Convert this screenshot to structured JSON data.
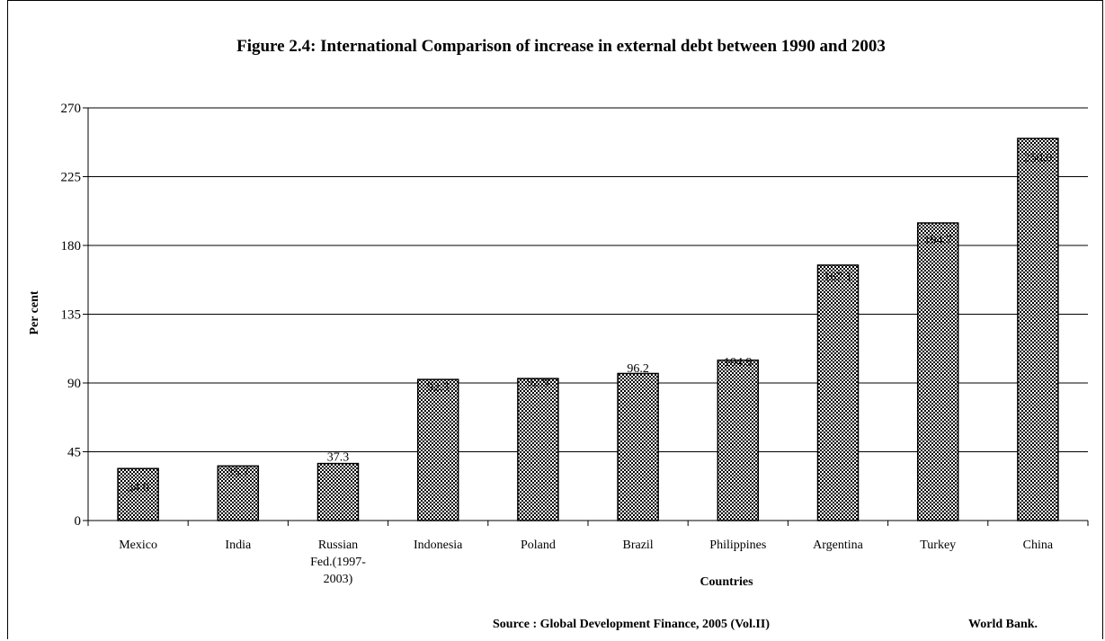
{
  "chart_data": {
    "type": "bar",
    "title": "Figure 2.4: International Comparison of increase in external debt between 1990 and 2003",
    "xlabel": "Countries",
    "ylabel": "Per cent",
    "categories": [
      [
        "Mexico"
      ],
      [
        "India"
      ],
      [
        "Russian",
        "Fed.(1997-",
        "2003)"
      ],
      [
        "Indonesia"
      ],
      [
        "Poland"
      ],
      [
        "Brazil"
      ],
      [
        "Philippines"
      ],
      [
        "Argentina"
      ],
      [
        "Turkey"
      ],
      [
        "China"
      ]
    ],
    "values": [
      34.0,
      35.7,
      37.3,
      92.3,
      92.9,
      96.2,
      104.9,
      167.1,
      194.7,
      250.0
    ],
    "value_labels": [
      "34.0",
      "35.7",
      "37.3",
      "92.3",
      "92.9",
      "96.2",
      "104.9",
      "167.1",
      "194.7",
      "250.0"
    ],
    "value_label_positions": [
      [
        22,
        45
      ],
      [
        32,
        45
      ],
      [
        42,
        45
      ],
      [
        88,
        135
      ],
      [
        91,
        135
      ],
      [
        100,
        135
      ],
      [
        104,
        135
      ],
      [
        160,
        180
      ],
      [
        184,
        225
      ],
      [
        238,
        270
      ]
    ],
    "ylim": [
      0,
      270
    ],
    "yticks": [
      0,
      45,
      90,
      135,
      180,
      225,
      270
    ],
    "grid": true,
    "bar_fill": "checkered",
    "bar_fill_colors": [
      "#000000",
      "#ffffff"
    ],
    "source": "Source : Global Development Finance, 2005 (Vol.II)",
    "publisher": "World Bank."
  }
}
